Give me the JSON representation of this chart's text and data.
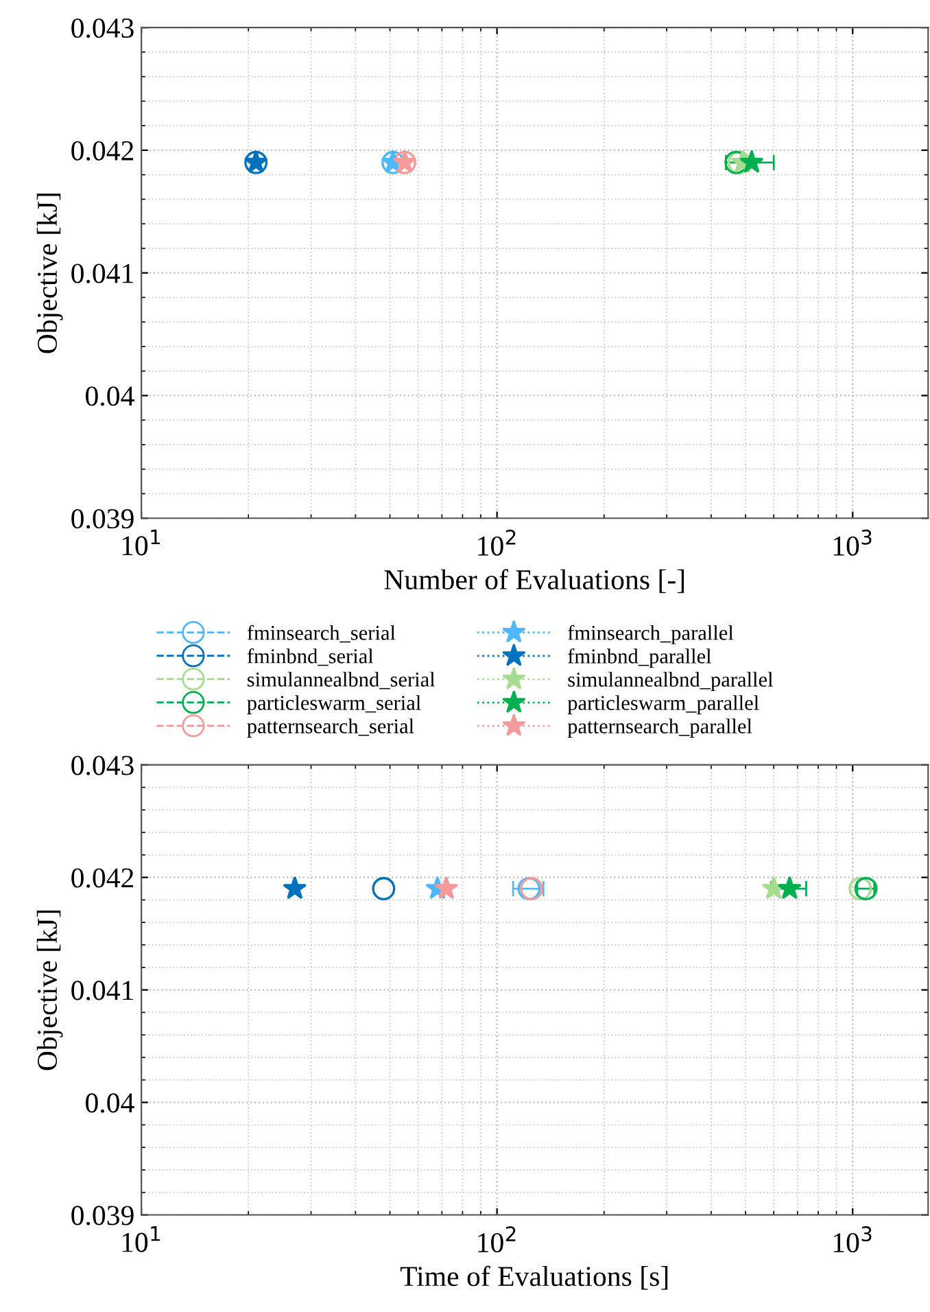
{
  "chart_data": [
    {
      "type": "scatter",
      "xlabel": "Number of Evaluations [-]",
      "ylabel": "Objective [kJ]",
      "log": "x",
      "grid": true,
      "legend": "bottom",
      "xlim": [
        10,
        1630
      ],
      "ylim": [
        0.039,
        0.043
      ],
      "xticks": [
        {
          "value": 10,
          "label": "10$^{1}$"
        },
        {
          "value": 100,
          "label": "10$^{2}$"
        },
        {
          "value": 1000,
          "label": "10$^{3}$"
        }
      ],
      "yticks": [
        0.039,
        0.04,
        0.041,
        0.042,
        0.043
      ],
      "series": [
        {
          "name": "fminsearch_serial",
          "color": "#4db8ff",
          "marker": "circle",
          "line_style": "dashed",
          "x": [
            51
          ],
          "values": [
            0.0419
          ]
        },
        {
          "name": "fminbnd_serial",
          "color": "#0072bd",
          "marker": "circle",
          "line_style": "dashed",
          "x": [
            21
          ],
          "values": [
            0.0419
          ]
        },
        {
          "name": "simulannealbnd_serial",
          "color": "#a6dc8f",
          "marker": "circle",
          "line_style": "dashed",
          "x": [
            480
          ],
          "values": [
            0.0419
          ]
        },
        {
          "name": "particleswarm_serial",
          "color": "#00b050",
          "marker": "circle",
          "line_style": "dashed",
          "x": [
            470
          ],
          "values": [
            0.0419
          ]
        },
        {
          "name": "patternsearch_serial",
          "color": "#f59a9a",
          "marker": "circle",
          "line_style": "dashed",
          "x": [
            55
          ],
          "values": [
            0.0419
          ]
        },
        {
          "name": "fminsearch_parallel",
          "color": "#4db8ff",
          "marker": "star",
          "line_style": "dotted",
          "x": [
            51
          ],
          "values": [
            0.0419
          ]
        },
        {
          "name": "fminbnd_parallel",
          "color": "#0072bd",
          "marker": "star",
          "line_style": "dotted",
          "x": [
            21
          ],
          "values": [
            0.0419
          ]
        },
        {
          "name": "simulannealbnd_parallel",
          "color": "#a6dc8f",
          "marker": "star",
          "line_style": "dotted",
          "x": [
            490
          ],
          "values": [
            0.0419
          ]
        },
        {
          "name": "particleswarm_parallel",
          "color": "#00b050",
          "marker": "star",
          "line_style": "dotted",
          "x": [
            520
          ],
          "values": [
            0.0419
          ],
          "xerrors": [
            80
          ]
        },
        {
          "name": "patternsearch_parallel",
          "color": "#f59a9a",
          "marker": "star",
          "line_style": "dotted",
          "x": [
            55
          ],
          "values": [
            0.0419
          ]
        }
      ]
    },
    {
      "type": "scatter",
      "xlabel": "Time of Evaluations [s]",
      "ylabel": "Objective [kJ]",
      "log": "x",
      "grid": true,
      "xlim": [
        10,
        1630
      ],
      "ylim": [
        0.039,
        0.043
      ],
      "xticks": [
        {
          "value": 10,
          "label": "10$^{1}$"
        },
        {
          "value": 100,
          "label": "10$^{2}$"
        },
        {
          "value": 1000,
          "label": "10$^{3}$"
        }
      ],
      "yticks": [
        0.039,
        0.04,
        0.041,
        0.042,
        0.043
      ],
      "series": [
        {
          "color": "#4db8ff",
          "marker": "circle",
          "line_style": "dashed",
          "x": [
            123
          ],
          "values": [
            0.0419
          ],
          "xerrors": [
            12
          ]
        },
        {
          "color": "#0072bd",
          "marker": "circle",
          "line_style": "dashed",
          "x": [
            48
          ],
          "values": [
            0.0419
          ]
        },
        {
          "color": "#a6dc8f",
          "marker": "circle",
          "line_style": "dashed",
          "x": [
            1050
          ],
          "values": [
            0.0419
          ]
        },
        {
          "color": "#00b050",
          "marker": "circle",
          "line_style": "dashed",
          "x": [
            1090
          ],
          "values": [
            0.0419
          ],
          "xerrors": [
            60
          ]
        },
        {
          "color": "#f59a9a",
          "marker": "circle",
          "line_style": "dashed",
          "x": [
            125
          ],
          "values": [
            0.0419
          ]
        },
        {
          "color": "#4db8ff",
          "marker": "star",
          "line_style": "dotted",
          "x": [
            68
          ],
          "values": [
            0.0419
          ]
        },
        {
          "color": "#0072bd",
          "marker": "star",
          "line_style": "dotted",
          "x": [
            27
          ],
          "values": [
            0.0419
          ]
        },
        {
          "color": "#a6dc8f",
          "marker": "star",
          "line_style": "dotted",
          "x": [
            600
          ],
          "values": [
            0.0419
          ]
        },
        {
          "color": "#00b050",
          "marker": "star",
          "line_style": "dotted",
          "x": [
            665
          ],
          "values": [
            0.0419
          ],
          "xerrors": [
            75
          ]
        },
        {
          "color": "#f59a9a",
          "marker": "star",
          "line_style": "dotted",
          "x": [
            72
          ],
          "values": [
            0.0419
          ]
        }
      ]
    }
  ]
}
